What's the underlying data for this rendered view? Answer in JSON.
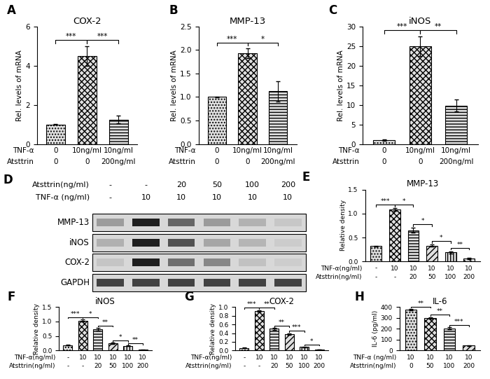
{
  "chart_data": [
    {
      "panel": "A",
      "type": "bar",
      "title": "COX-2",
      "y_label": "Rel. levels of mRNA",
      "categories": [
        null,
        null,
        null
      ],
      "values": [
        1.0,
        4.5,
        1.25
      ],
      "errors": [
        0.02,
        0.5,
        0.2
      ],
      "color": "#e0e0e0",
      "ylim": [
        0,
        6
      ],
      "yticks": [
        0,
        2,
        4,
        6
      ],
      "condition_rows": [
        {
          "label": "TNF-α",
          "values": [
            "0",
            "10ng/ml",
            "10ng/ml"
          ]
        },
        {
          "label": "Atsttrin",
          "values": [
            "0",
            "0",
            "200ng/ml"
          ]
        }
      ],
      "significance": [
        {
          "from": 0,
          "to": 1,
          "label": "***"
        },
        {
          "from": 1,
          "to": 2,
          "label": "***"
        }
      ]
    },
    {
      "panel": "B",
      "type": "bar",
      "title": "MMP-13",
      "y_label": "Rel. levels of mRNA",
      "categories": [
        null,
        null,
        null
      ],
      "values": [
        1.0,
        1.93,
        1.12
      ],
      "errors": [
        0.01,
        0.1,
        0.22
      ],
      "color": "#e0e0e0",
      "ylim": [
        0,
        2.5
      ],
      "yticks": [
        {
          "value": 0,
          "label": "0.0"
        },
        0.5,
        {
          "value": 1,
          "label": "1.0"
        },
        1.5,
        {
          "value": 2,
          "label": "2.0"
        },
        2.5
      ],
      "condition_rows": [
        {
          "label": "TNF-α",
          "values": [
            "0",
            "10ng/ml",
            "10ng/ml"
          ]
        },
        {
          "label": "Atsttrin",
          "values": [
            "0",
            "0",
            "200ng/ml"
          ]
        }
      ],
      "significance": [
        {
          "from": 0,
          "to": 1,
          "label": "***"
        },
        {
          "from": 1,
          "to": 2,
          "label": "*"
        }
      ]
    },
    {
      "panel": "C",
      "type": "bar",
      "title": "iNOS",
      "y_label": "Rel. levels of mRNA",
      "categories": [
        null,
        null,
        null
      ],
      "values": [
        1.0,
        25,
        9.8
      ],
      "errors": [
        0.1,
        2.5,
        1.5
      ],
      "color": "#e0e0e0",
      "ylim": [
        0,
        30
      ],
      "yticks": [
        0,
        5,
        10,
        15,
        20,
        25,
        30
      ],
      "condition_rows": [
        {
          "label": "TNF-α",
          "values": [
            "0",
            "10ng/ml",
            "10ng/ml"
          ]
        },
        {
          "label": "Atsttrin",
          "values": [
            "0",
            "0",
            "200ng/ml"
          ]
        }
      ],
      "significance": [
        {
          "from": 0,
          "to": 1,
          "label": "***"
        },
        {
          "from": 1,
          "to": 2,
          "label": "**"
        }
      ]
    },
    {
      "panel": "E",
      "type": "bar",
      "title": "MMP-13",
      "y_label": "Relative density",
      "categories": [
        null,
        null,
        null,
        null,
        null,
        null
      ],
      "values": [
        0.32,
        1.08,
        0.65,
        0.33,
        0.19,
        0.06
      ],
      "errors": [
        0.01,
        0.03,
        0.05,
        0.02,
        0.02,
        0.01
      ],
      "color": "#e0e0e0",
      "ylim": [
        0,
        1.5
      ],
      "yticks": [
        {
          "value": 0,
          "label": "0.0"
        },
        0.5,
        {
          "value": 1,
          "label": "1.0"
        },
        1.5
      ],
      "condition_rows": [
        {
          "label": "TNF-α(ng/ml)",
          "values": [
            "-",
            "10",
            "10",
            "10",
            "10",
            "10"
          ]
        },
        {
          "label": "Atsttrin(ng/ml)",
          "values": [
            "-",
            "-",
            "20",
            "50",
            "100",
            "200"
          ]
        }
      ],
      "significance": [
        {
          "from": 0,
          "to": 1,
          "label": "***"
        },
        {
          "from": 1,
          "to": 2,
          "label": "*"
        },
        {
          "from": 2,
          "to": 3,
          "label": "*"
        },
        {
          "from": 3,
          "to": 4,
          "label": "*"
        },
        {
          "from": 4,
          "to": 5,
          "label": "**"
        }
      ]
    },
    {
      "panel": "F",
      "type": "bar",
      "title": "iNOS",
      "y_label": "Relative density",
      "categories": [
        null,
        null,
        null,
        null,
        null,
        null
      ],
      "values": [
        0.19,
        1.03,
        0.74,
        0.25,
        0.16,
        0.03
      ],
      "errors": [
        0.01,
        0.04,
        0.05,
        0.02,
        0.01,
        0.01
      ],
      "color": "#e0e0e0",
      "ylim": [
        0,
        1.5
      ],
      "yticks": [
        {
          "value": 0,
          "label": "0.0"
        },
        0.5,
        {
          "value": 1,
          "label": "1.0"
        },
        1.5
      ],
      "condition_rows": [
        {
          "label": "TNF-α(ng/ml)",
          "values": [
            "-",
            "10",
            "10",
            "10",
            "10",
            "10"
          ]
        },
        {
          "label": "Atsttrin(ng/ml)",
          "values": [
            "-",
            "-",
            "20",
            "50",
            "100",
            "200"
          ]
        }
      ],
      "significance": [
        {
          "from": 0,
          "to": 1,
          "label": "***"
        },
        {
          "from": 1,
          "to": 2,
          "label": "*"
        },
        {
          "from": 2,
          "to": 3,
          "label": "**"
        },
        {
          "from": 3,
          "to": 4,
          "label": "*"
        },
        {
          "from": 4,
          "to": 5,
          "label": "**"
        }
      ]
    },
    {
      "panel": "G",
      "type": "bar",
      "title": "COX-2",
      "y_label": "Relative density",
      "categories": [
        null,
        null,
        null,
        null,
        null,
        null
      ],
      "values": [
        0.06,
        0.91,
        0.5,
        0.38,
        0.08,
        0.02
      ],
      "errors": [
        0.005,
        0.02,
        0.02,
        0.02,
        0.01,
        0.005
      ],
      "color": "#e0e0e0",
      "ylim": [
        0,
        1.0
      ],
      "yticks": [
        {
          "value": 0,
          "label": "0.0"
        },
        0.2,
        0.4,
        0.6,
        0.8,
        {
          "value": 1,
          "label": "1.0"
        }
      ],
      "condition_rows": [
        {
          "label": "TNF-α(ng/ml)",
          "values": [
            "-",
            "10",
            "10",
            "10",
            "10",
            "10"
          ]
        },
        {
          "label": "Atsttrin(ng/ml)",
          "values": [
            "-",
            "-",
            "20",
            "50",
            "100",
            "200"
          ]
        }
      ],
      "significance": [
        {
          "from": 0,
          "to": 1,
          "label": "***"
        },
        {
          "from": 1,
          "to": 2,
          "label": "**"
        },
        {
          "from": 2,
          "to": 3,
          "label": "**"
        },
        {
          "from": 3,
          "to": 4,
          "label": "***"
        },
        {
          "from": 4,
          "to": 5,
          "label": "*"
        }
      ]
    },
    {
      "panel": "H",
      "type": "bar",
      "title": "IL-6",
      "y_label": "IL-6 (pg/ml)",
      "categories": [
        null,
        null,
        null,
        null
      ],
      "values": [
        375,
        300,
        205,
        45
      ],
      "errors": [
        8,
        8,
        8,
        5
      ],
      "color": "#e0e0e0",
      "ylim": [
        0,
        400
      ],
      "yticks": [
        0,
        100,
        200,
        300,
        400
      ],
      "condition_rows": [
        {
          "label": "TNF-α (ng/ml)",
          "values": [
            "10",
            "10",
            "10",
            "10"
          ]
        },
        {
          "label": "Atsttrin(ng/ml)",
          "values": [
            "0",
            "50",
            "100",
            "200"
          ]
        }
      ],
      "significance": [
        {
          "from": 0,
          "to": 1,
          "label": "**"
        },
        {
          "from": 1,
          "to": 2,
          "label": "**"
        },
        {
          "from": 2,
          "to": 3,
          "label": "***"
        }
      ]
    }
  ],
  "blot": {
    "panel": "D",
    "header_rows": [
      {
        "label": "Atsttrin(ng/ml)",
        "values": [
          "-",
          "-",
          "20",
          "50",
          "100",
          "200"
        ]
      },
      {
        "label": "TNF-α (ng/ml)",
        "values": [
          "-",
          "10",
          "10",
          "10",
          "10",
          "10"
        ]
      }
    ],
    "bands": [
      "MMP-13",
      "iNOS",
      "COX-2",
      "GAPDH"
    ]
  }
}
